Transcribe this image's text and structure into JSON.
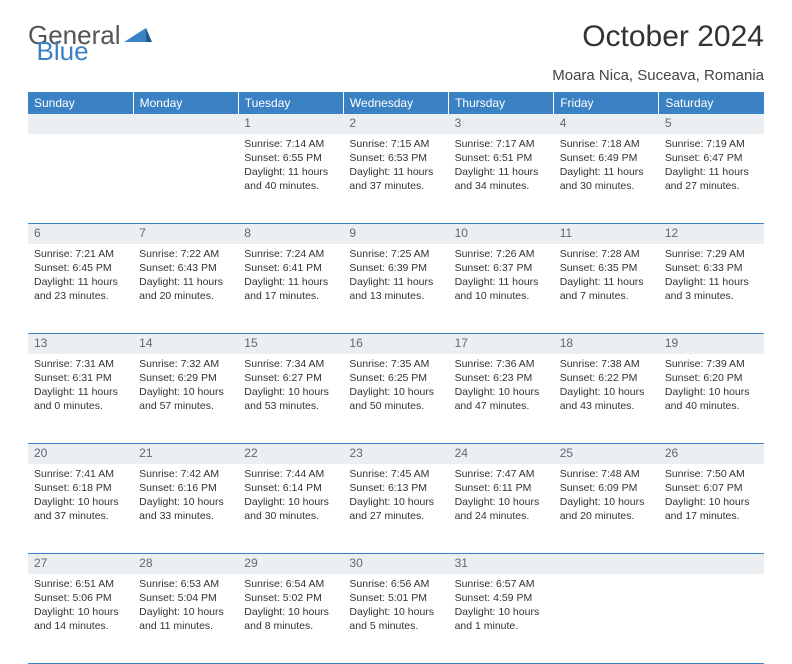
{
  "logo": {
    "part1": "General",
    "part2": "Blue"
  },
  "title": "October 2024",
  "location": "Moara Nica, Suceava, Romania",
  "colors": {
    "header_bg": "#3b82c4",
    "header_text": "#ffffff",
    "daynum_bg": "#eceff2",
    "daynum_text": "#5a6a78",
    "border": "#3b82c4",
    "body_text": "#333333"
  },
  "weekdays": [
    "Sunday",
    "Monday",
    "Tuesday",
    "Wednesday",
    "Thursday",
    "Friday",
    "Saturday"
  ],
  "weeks": [
    [
      null,
      null,
      {
        "n": "1",
        "sr": "Sunrise: 7:14 AM",
        "ss": "Sunset: 6:55 PM",
        "d1": "Daylight: 11 hours",
        "d2": "and 40 minutes."
      },
      {
        "n": "2",
        "sr": "Sunrise: 7:15 AM",
        "ss": "Sunset: 6:53 PM",
        "d1": "Daylight: 11 hours",
        "d2": "and 37 minutes."
      },
      {
        "n": "3",
        "sr": "Sunrise: 7:17 AM",
        "ss": "Sunset: 6:51 PM",
        "d1": "Daylight: 11 hours",
        "d2": "and 34 minutes."
      },
      {
        "n": "4",
        "sr": "Sunrise: 7:18 AM",
        "ss": "Sunset: 6:49 PM",
        "d1": "Daylight: 11 hours",
        "d2": "and 30 minutes."
      },
      {
        "n": "5",
        "sr": "Sunrise: 7:19 AM",
        "ss": "Sunset: 6:47 PM",
        "d1": "Daylight: 11 hours",
        "d2": "and 27 minutes."
      }
    ],
    [
      {
        "n": "6",
        "sr": "Sunrise: 7:21 AM",
        "ss": "Sunset: 6:45 PM",
        "d1": "Daylight: 11 hours",
        "d2": "and 23 minutes."
      },
      {
        "n": "7",
        "sr": "Sunrise: 7:22 AM",
        "ss": "Sunset: 6:43 PM",
        "d1": "Daylight: 11 hours",
        "d2": "and 20 minutes."
      },
      {
        "n": "8",
        "sr": "Sunrise: 7:24 AM",
        "ss": "Sunset: 6:41 PM",
        "d1": "Daylight: 11 hours",
        "d2": "and 17 minutes."
      },
      {
        "n": "9",
        "sr": "Sunrise: 7:25 AM",
        "ss": "Sunset: 6:39 PM",
        "d1": "Daylight: 11 hours",
        "d2": "and 13 minutes."
      },
      {
        "n": "10",
        "sr": "Sunrise: 7:26 AM",
        "ss": "Sunset: 6:37 PM",
        "d1": "Daylight: 11 hours",
        "d2": "and 10 minutes."
      },
      {
        "n": "11",
        "sr": "Sunrise: 7:28 AM",
        "ss": "Sunset: 6:35 PM",
        "d1": "Daylight: 11 hours",
        "d2": "and 7 minutes."
      },
      {
        "n": "12",
        "sr": "Sunrise: 7:29 AM",
        "ss": "Sunset: 6:33 PM",
        "d1": "Daylight: 11 hours",
        "d2": "and 3 minutes."
      }
    ],
    [
      {
        "n": "13",
        "sr": "Sunrise: 7:31 AM",
        "ss": "Sunset: 6:31 PM",
        "d1": "Daylight: 11 hours",
        "d2": "and 0 minutes."
      },
      {
        "n": "14",
        "sr": "Sunrise: 7:32 AM",
        "ss": "Sunset: 6:29 PM",
        "d1": "Daylight: 10 hours",
        "d2": "and 57 minutes."
      },
      {
        "n": "15",
        "sr": "Sunrise: 7:34 AM",
        "ss": "Sunset: 6:27 PM",
        "d1": "Daylight: 10 hours",
        "d2": "and 53 minutes."
      },
      {
        "n": "16",
        "sr": "Sunrise: 7:35 AM",
        "ss": "Sunset: 6:25 PM",
        "d1": "Daylight: 10 hours",
        "d2": "and 50 minutes."
      },
      {
        "n": "17",
        "sr": "Sunrise: 7:36 AM",
        "ss": "Sunset: 6:23 PM",
        "d1": "Daylight: 10 hours",
        "d2": "and 47 minutes."
      },
      {
        "n": "18",
        "sr": "Sunrise: 7:38 AM",
        "ss": "Sunset: 6:22 PM",
        "d1": "Daylight: 10 hours",
        "d2": "and 43 minutes."
      },
      {
        "n": "19",
        "sr": "Sunrise: 7:39 AM",
        "ss": "Sunset: 6:20 PM",
        "d1": "Daylight: 10 hours",
        "d2": "and 40 minutes."
      }
    ],
    [
      {
        "n": "20",
        "sr": "Sunrise: 7:41 AM",
        "ss": "Sunset: 6:18 PM",
        "d1": "Daylight: 10 hours",
        "d2": "and 37 minutes."
      },
      {
        "n": "21",
        "sr": "Sunrise: 7:42 AM",
        "ss": "Sunset: 6:16 PM",
        "d1": "Daylight: 10 hours",
        "d2": "and 33 minutes."
      },
      {
        "n": "22",
        "sr": "Sunrise: 7:44 AM",
        "ss": "Sunset: 6:14 PM",
        "d1": "Daylight: 10 hours",
        "d2": "and 30 minutes."
      },
      {
        "n": "23",
        "sr": "Sunrise: 7:45 AM",
        "ss": "Sunset: 6:13 PM",
        "d1": "Daylight: 10 hours",
        "d2": "and 27 minutes."
      },
      {
        "n": "24",
        "sr": "Sunrise: 7:47 AM",
        "ss": "Sunset: 6:11 PM",
        "d1": "Daylight: 10 hours",
        "d2": "and 24 minutes."
      },
      {
        "n": "25",
        "sr": "Sunrise: 7:48 AM",
        "ss": "Sunset: 6:09 PM",
        "d1": "Daylight: 10 hours",
        "d2": "and 20 minutes."
      },
      {
        "n": "26",
        "sr": "Sunrise: 7:50 AM",
        "ss": "Sunset: 6:07 PM",
        "d1": "Daylight: 10 hours",
        "d2": "and 17 minutes."
      }
    ],
    [
      {
        "n": "27",
        "sr": "Sunrise: 6:51 AM",
        "ss": "Sunset: 5:06 PM",
        "d1": "Daylight: 10 hours",
        "d2": "and 14 minutes."
      },
      {
        "n": "28",
        "sr": "Sunrise: 6:53 AM",
        "ss": "Sunset: 5:04 PM",
        "d1": "Daylight: 10 hours",
        "d2": "and 11 minutes."
      },
      {
        "n": "29",
        "sr": "Sunrise: 6:54 AM",
        "ss": "Sunset: 5:02 PM",
        "d1": "Daylight: 10 hours",
        "d2": "and 8 minutes."
      },
      {
        "n": "30",
        "sr": "Sunrise: 6:56 AM",
        "ss": "Sunset: 5:01 PM",
        "d1": "Daylight: 10 hours",
        "d2": "and 5 minutes."
      },
      {
        "n": "31",
        "sr": "Sunrise: 6:57 AM",
        "ss": "Sunset: 4:59 PM",
        "d1": "Daylight: 10 hours",
        "d2": "and 1 minute."
      },
      null,
      null
    ]
  ]
}
